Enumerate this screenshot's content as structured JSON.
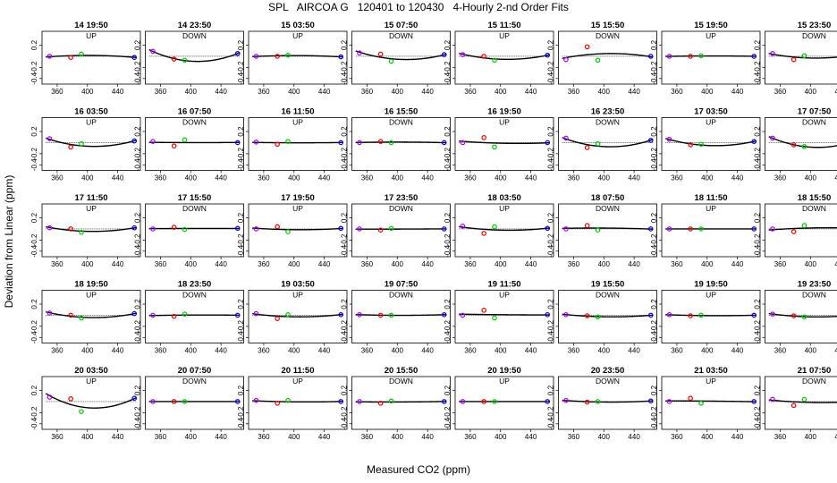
{
  "title": "SPL   AIRCOA G   120401 to 120430   4-Hourly 2-nd Order Fits",
  "xlabel": "Measured CO2 (ppm)",
  "ylabel": "Deviation from Linear (ppm)",
  "colors": {
    "curve": "#000000",
    "standard_low": "#aa00ff",
    "standard_mid1": "#ee0000",
    "standard_mid2": "#00cc00",
    "standard_high": "#0000ee"
  },
  "chart_data": {
    "type": "scatter",
    "layout": "small multiples, 5 rows x 8 columns",
    "xlim": [
      340,
      470
    ],
    "ylim": [
      -0.5,
      0.45
    ],
    "xticks": [
      360,
      400,
      440
    ],
    "xtick_labels": [
      "360",
      "400",
      "440"
    ],
    "yticks": [
      0.2,
      -0.2,
      -0.4
    ],
    "ytick_labels": [
      "0.2",
      "-0.2",
      "-0.4"
    ],
    "standard_x": [
      350,
      378,
      392,
      462
    ],
    "panels": [
      {
        "title": "14 19:50",
        "mode": "UP",
        "y": [
          0.0,
          -0.02,
          0.04,
          -0.02
        ]
      },
      {
        "title": "14 23:50",
        "mode": "DOWN",
        "y": [
          0.09,
          -0.05,
          -0.07,
          0.05
        ]
      },
      {
        "title": "15 03:50",
        "mode": "UP",
        "y": [
          0.0,
          0.0,
          0.02,
          -0.01
        ]
      },
      {
        "title": "15 07:50",
        "mode": "DOWN",
        "y": [
          0.06,
          0.04,
          -0.09,
          0.03
        ]
      },
      {
        "title": "15 11:50",
        "mode": "UP",
        "y": [
          0.03,
          0.0,
          -0.07,
          0.02
        ]
      },
      {
        "title": "15 15:50",
        "mode": "DOWN",
        "y": [
          -0.06,
          0.17,
          -0.07,
          0.0
        ]
      },
      {
        "title": "15 19:50",
        "mode": "UP",
        "y": [
          0.0,
          0.0,
          0.01,
          0.0
        ]
      },
      {
        "title": "15 23:50",
        "mode": "DOWN",
        "y": [
          0.05,
          -0.06,
          0.01,
          0.03
        ]
      },
      {
        "title": "16 03:50",
        "mode": "UP",
        "y": [
          0.07,
          -0.08,
          -0.02,
          0.03
        ]
      },
      {
        "title": "16 07:50",
        "mode": "DOWN",
        "y": [
          0.02,
          -0.06,
          0.05,
          0.0
        ]
      },
      {
        "title": "16 11:50",
        "mode": "UP",
        "y": [
          0.01,
          -0.03,
          0.02,
          0.0
        ]
      },
      {
        "title": "16 15:50",
        "mode": "DOWN",
        "y": [
          0.0,
          0.02,
          0.0,
          0.0
        ]
      },
      {
        "title": "16 19:50",
        "mode": "UP",
        "y": [
          0.0,
          0.09,
          -0.08,
          0.0
        ]
      },
      {
        "title": "16 23:50",
        "mode": "DOWN",
        "y": [
          0.08,
          -0.09,
          -0.02,
          0.04
        ]
      },
      {
        "title": "17 03:50",
        "mode": "UP",
        "y": [
          0.06,
          -0.04,
          -0.03,
          0.02
        ]
      },
      {
        "title": "17 07:50",
        "mode": "DOWN",
        "y": [
          0.08,
          -0.04,
          -0.07,
          0.04
        ]
      },
      {
        "title": "17 11:50",
        "mode": "UP",
        "y": [
          0.02,
          0.0,
          -0.06,
          0.02
        ]
      },
      {
        "title": "17 15:50",
        "mode": "DOWN",
        "y": [
          0.0,
          0.03,
          -0.01,
          0.01
        ]
      },
      {
        "title": "17 19:50",
        "mode": "UP",
        "y": [
          0.0,
          0.04,
          -0.05,
          0.01
        ]
      },
      {
        "title": "17 23:50",
        "mode": "DOWN",
        "y": [
          0.0,
          -0.02,
          0.01,
          0.0
        ]
      },
      {
        "title": "18 03:50",
        "mode": "UP",
        "y": [
          0.05,
          -0.08,
          0.04,
          0.01
        ]
      },
      {
        "title": "18 07:50",
        "mode": "DOWN",
        "y": [
          0.0,
          0.06,
          -0.02,
          0.0
        ]
      },
      {
        "title": "18 11:50",
        "mode": "UP",
        "y": [
          0.0,
          0.0,
          0.0,
          0.0
        ]
      },
      {
        "title": "18 15:50",
        "mode": "DOWN",
        "y": [
          0.0,
          -0.05,
          0.06,
          0.01
        ]
      },
      {
        "title": "18 19:50",
        "mode": "UP",
        "y": [
          0.04,
          0.0,
          -0.05,
          0.03
        ]
      },
      {
        "title": "18 23:50",
        "mode": "DOWN",
        "y": [
          0.0,
          -0.02,
          0.02,
          0.0
        ]
      },
      {
        "title": "19 03:50",
        "mode": "UP",
        "y": [
          0.03,
          -0.06,
          0.01,
          0.01
        ]
      },
      {
        "title": "19 07:50",
        "mode": "DOWN",
        "y": [
          0.01,
          0.0,
          0.0,
          0.01
        ]
      },
      {
        "title": "19 11:50",
        "mode": "UP",
        "y": [
          0.0,
          0.09,
          -0.05,
          0.01
        ]
      },
      {
        "title": "19 15:50",
        "mode": "DOWN",
        "y": [
          0.01,
          -0.01,
          -0.03,
          0.0
        ]
      },
      {
        "title": "19 19:50",
        "mode": "UP",
        "y": [
          0.01,
          -0.01,
          0.0,
          0.0
        ]
      },
      {
        "title": "19 23:50",
        "mode": "DOWN",
        "y": [
          0.02,
          -0.01,
          -0.03,
          0.01
        ]
      },
      {
        "title": "20 03:50",
        "mode": "UP",
        "y": [
          0.08,
          0.05,
          -0.18,
          0.06
        ]
      },
      {
        "title": "20 07:50",
        "mode": "DOWN",
        "y": [
          0.0,
          0.0,
          0.0,
          0.0
        ]
      },
      {
        "title": "20 11:50",
        "mode": "UP",
        "y": [
          0.02,
          -0.03,
          0.02,
          0.0
        ]
      },
      {
        "title": "20 15:50",
        "mode": "DOWN",
        "y": [
          0.0,
          -0.03,
          0.01,
          0.0
        ]
      },
      {
        "title": "20 19:50",
        "mode": "UP",
        "y": [
          0.0,
          0.0,
          0.0,
          0.0
        ]
      },
      {
        "title": "20 23:50",
        "mode": "DOWN",
        "y": [
          0.02,
          -0.01,
          0.0,
          0.01
        ]
      },
      {
        "title": "21 03:50",
        "mode": "UP",
        "y": [
          0.0,
          0.06,
          -0.03,
          0.0
        ]
      },
      {
        "title": "21 07:50",
        "mode": "DOWN",
        "y": [
          0.04,
          -0.07,
          0.04,
          0.0
        ]
      }
    ]
  }
}
